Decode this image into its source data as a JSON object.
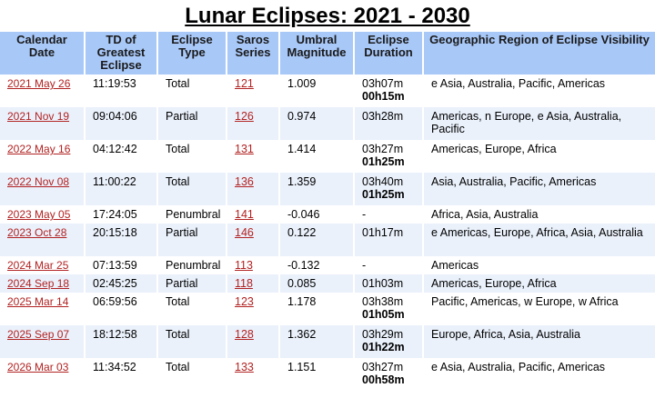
{
  "title": "Lunar Eclipses: 2021 - 2030",
  "headers": {
    "date": "Calendar Date",
    "td": "TD of Greatest Eclipse",
    "type": "Eclipse Type",
    "saros": "Saros Series",
    "magnitude": "Umbral Magnitude",
    "duration": "Eclipse Duration",
    "region": "Geographic Region of Eclipse Visibility"
  },
  "rows": [
    {
      "date": "2021 May 26",
      "td": "11:19:53",
      "type": "Total",
      "saros": "121",
      "magnitude": "1.009",
      "duration": "03h07m",
      "total_duration": "00h15m",
      "region": "e Asia, Australia, Pacific, Americas"
    },
    {
      "date": "2021 Nov 19",
      "td": "09:04:06",
      "type": "Partial",
      "saros": "126",
      "magnitude": "0.974",
      "duration": "03h28m",
      "total_duration": "",
      "region": "Americas, n Europe, e Asia, Australia, Pacific"
    },
    {
      "date": "2022 May 16",
      "td": "04:12:42",
      "type": "Total",
      "saros": "131",
      "magnitude": "1.414",
      "duration": "03h27m",
      "total_duration": "01h25m",
      "region": "Americas, Europe, Africa"
    },
    {
      "date": "2022 Nov 08",
      "td": "11:00:22",
      "type": "Total",
      "saros": "136",
      "magnitude": "1.359",
      "duration": "03h40m",
      "total_duration": "01h25m",
      "region": "Asia, Australia, Pacific, Americas"
    },
    {
      "date": "2023 May 05",
      "td": "17:24:05",
      "type": "Penumbral",
      "saros": "141",
      "magnitude": "-0.046",
      "duration": "-",
      "total_duration": "",
      "region": "Africa, Asia, Australia"
    },
    {
      "date": "2023 Oct 28",
      "td": "20:15:18",
      "type": "Partial",
      "saros": "146",
      "magnitude": "0.122",
      "duration": "01h17m",
      "total_duration": "",
      "region": "e Americas, Europe, Africa, Asia, Australia"
    },
    {
      "date": "2024 Mar 25",
      "td": "07:13:59",
      "type": "Penumbral",
      "saros": "113",
      "magnitude": "-0.132",
      "duration": "-",
      "total_duration": "",
      "region": "Americas"
    },
    {
      "date": "2024 Sep 18",
      "td": "02:45:25",
      "type": "Partial",
      "saros": "118",
      "magnitude": "0.085",
      "duration": "01h03m",
      "total_duration": "",
      "region": "Americas, Europe, Africa"
    },
    {
      "date": "2025 Mar 14",
      "td": "06:59:56",
      "type": "Total",
      "saros": "123",
      "magnitude": "1.178",
      "duration": "03h38m",
      "total_duration": "01h05m",
      "region": "Pacific, Americas, w Europe, w Africa"
    },
    {
      "date": "2025 Sep 07",
      "td": "18:12:58",
      "type": "Total",
      "saros": "128",
      "magnitude": "1.362",
      "duration": "03h29m",
      "total_duration": "01h22m",
      "region": "Europe, Africa, Asia, Australia"
    },
    {
      "date": "2026 Mar 03",
      "td": "11:34:52",
      "type": "Total",
      "saros": "133",
      "magnitude": "1.151",
      "duration": "03h27m",
      "total_duration": "00h58m",
      "region": "e Asia, Australia, Pacific, Americas"
    }
  ]
}
